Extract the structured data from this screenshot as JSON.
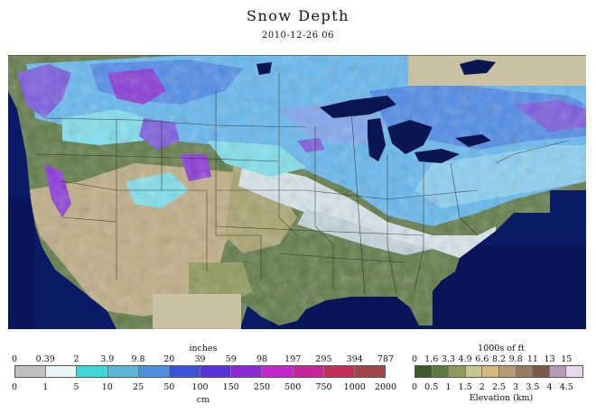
{
  "title": "Snow Depth",
  "subtitle": "2010-12-26 06",
  "colors": {
    "ocean": "#0b1a66",
    "lake": "#0a1650",
    "land_green": "#5f7a45",
    "land_tan": "#bfae84",
    "no_data": "#c9c1a1",
    "snow_thin": "#d8e6ec",
    "snow_cyan": "#7fe0ef",
    "snow_light_blue": "#64b8f0",
    "snow_blue": "#4d8be8",
    "snow_purple": "#7a5be0",
    "snow_violet": "#8a38d8"
  },
  "snow_legend": {
    "top_label": "inches",
    "top_ticks": [
      "0",
      "0.39",
      "2",
      "3.9",
      "9.8",
      "20",
      "39",
      "59",
      "98",
      "197",
      "295",
      "394",
      "787"
    ],
    "bottom_ticks": [
      "0",
      "1",
      "5",
      "10",
      "25",
      "50",
      "100",
      "150",
      "250",
      "500",
      "750",
      "1000",
      "2000"
    ],
    "bottom_label": "cm",
    "swatches": [
      "#c0c0c0",
      "#e8f4f6",
      "#3fd8d8",
      "#5eb6d6",
      "#4d8ee0",
      "#3a55d8",
      "#5a30d8",
      "#8a2ad4",
      "#c427d0",
      "#c8249c",
      "#c2305a",
      "#a24848"
    ]
  },
  "elevation_legend": {
    "top_label": "1000s of ft",
    "top_ticks": [
      "0",
      "1.6",
      "3.3",
      "4.9",
      "6.6",
      "8.2",
      "9.8",
      "11",
      "13",
      "15"
    ],
    "bottom_ticks": [
      "0",
      "0.5",
      "1",
      "1.5",
      "2",
      "2.5",
      "3",
      "3.5",
      "4",
      "4.5"
    ],
    "bottom_label": "Elevation (km)",
    "swatches": [
      "#3e5a2a",
      "#5e7a40",
      "#8e9a5a",
      "#c8c690",
      "#d4b87a",
      "#b89a70",
      "#9a7a5e",
      "#7a5a4a",
      "#b898b8",
      "#e8d8ec"
    ]
  }
}
